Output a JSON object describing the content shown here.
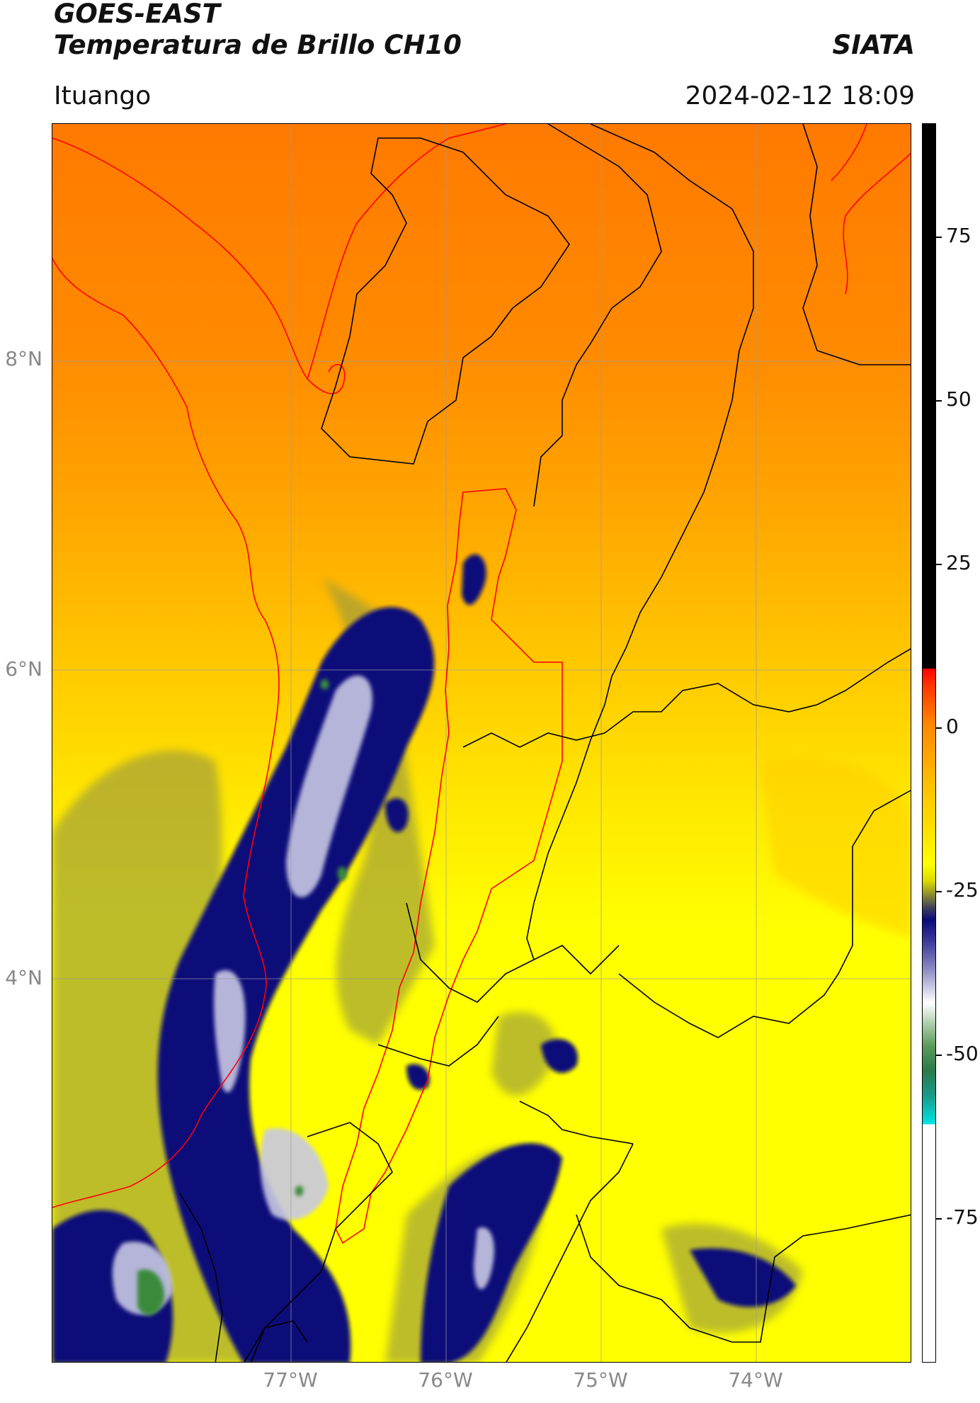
{
  "header": {
    "satellite": "GOES-EAST",
    "product": "Temperatura de Brillo CH10",
    "agency": "SIATA",
    "region": "Ituango",
    "datetime": "2024-02-12 18:09"
  },
  "map": {
    "lat_ticks": [
      "8°N",
      "6°N",
      "4°N"
    ],
    "lon_ticks": [
      "77°W",
      "76°W",
      "75°W",
      "74°W"
    ],
    "colors": {
      "warm": "#ff8000",
      "mid": "#ffc000",
      "cold_edge": "#ffff00",
      "cloud_olive": "#8a8a3a",
      "cloud_dark_blue": "#101078",
      "cloud_light": "#c8c8e4",
      "cloud_green": "#3a8a3a",
      "admin_border": "#000000",
      "basin_border": "#ff0000",
      "grid": "#9a9a9a"
    }
  },
  "colorbar": {
    "ticks": [
      "75",
      "50",
      "25",
      "0",
      "-25",
      "-50",
      "-75"
    ]
  }
}
